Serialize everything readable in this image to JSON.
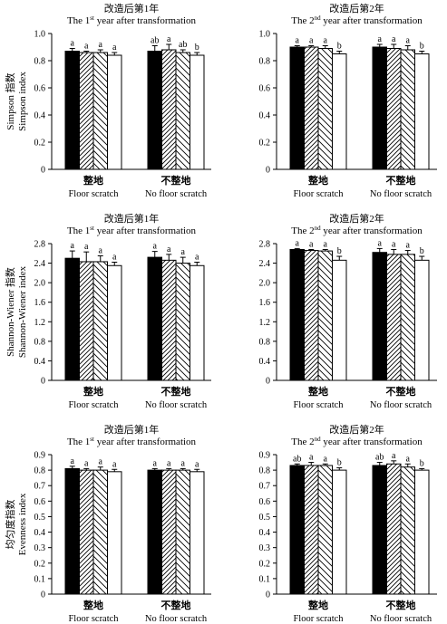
{
  "figure": {
    "category_labels_cn": [
      "整地",
      "不整地"
    ],
    "category_labels_en": [
      "Floor scratch",
      "No floor scratch"
    ],
    "panel_titles": [
      {
        "cn": "改造后第1年",
        "en_pre": "The 1",
        "en_sup": "st",
        "en_post": " year after transformation"
      },
      {
        "cn": "改造后第2年",
        "en_pre": "The 2",
        "en_sup": "nd",
        "en_post": " year after transformation"
      }
    ]
  },
  "chart_data": [
    {
      "type": "bar",
      "row": 0,
      "col": 0,
      "title": "改造后第1年 The 1st year after transformation",
      "ylabel_cn": "Simpson 指数",
      "ylabel_en": "Simpson index",
      "ylim": [
        0,
        1.0
      ],
      "yticks": [
        "0",
        "0.2",
        "0.4",
        "0.6",
        "0.8",
        "1.0"
      ],
      "yticks_values": [
        0,
        0.2,
        0.4,
        0.6,
        0.8,
        1.0
      ],
      "categories": [
        "整地 Floor scratch",
        "不整地 No floor scratch"
      ],
      "series": [
        {
          "fill": "black",
          "values": [
            0.87,
            0.87
          ],
          "errors": [
            0.02,
            0.04
          ],
          "letters": [
            "a",
            "ab"
          ]
        },
        {
          "fill": "hatch-fwd",
          "values": [
            0.86,
            0.88
          ],
          "errors": [
            0.01,
            0.04
          ],
          "letters": [
            "a",
            "a"
          ]
        },
        {
          "fill": "hatch-back",
          "values": [
            0.86,
            0.86
          ],
          "errors": [
            0.02,
            0.02
          ],
          "letters": [
            "a",
            "ab"
          ]
        },
        {
          "fill": "white",
          "values": [
            0.84,
            0.84
          ],
          "errors": [
            0.02,
            0.02
          ],
          "letters": [
            "a",
            "b"
          ]
        }
      ]
    },
    {
      "type": "bar",
      "row": 0,
      "col": 1,
      "title": "改造后第2年 The 2nd year after transformation",
      "ylim": [
        0,
        1.0
      ],
      "yticks": [
        "0",
        "0.2",
        "0.4",
        "0.6",
        "0.8",
        "1.0"
      ],
      "yticks_values": [
        0,
        0.2,
        0.4,
        0.6,
        0.8,
        1.0
      ],
      "categories": [
        "整地 Floor scratch",
        "不整地 No floor scratch"
      ],
      "series": [
        {
          "fill": "black",
          "values": [
            0.9,
            0.9
          ],
          "errors": [
            0.01,
            0.02
          ],
          "letters": [
            "a",
            "a"
          ]
        },
        {
          "fill": "hatch-fwd",
          "values": [
            0.9,
            0.89
          ],
          "errors": [
            0.01,
            0.03
          ],
          "letters": [
            "a",
            "a"
          ]
        },
        {
          "fill": "hatch-back",
          "values": [
            0.89,
            0.88
          ],
          "errors": [
            0.02,
            0.03
          ],
          "letters": [
            "a",
            "a"
          ]
        },
        {
          "fill": "white",
          "values": [
            0.85,
            0.85
          ],
          "errors": [
            0.02,
            0.02
          ],
          "letters": [
            "b",
            "b"
          ]
        }
      ]
    },
    {
      "type": "bar",
      "row": 1,
      "col": 0,
      "title": "改造后第1年 The 1st year after transformation",
      "ylabel_cn": "Shannon-Wiener 指数",
      "ylabel_en": "Shannon-Wiener index",
      "ylim": [
        0,
        2.8
      ],
      "yticks": [
        "0",
        "0.4",
        "0.8",
        "1.2",
        "1.6",
        "2.0",
        "2.4",
        "2.8"
      ],
      "yticks_values": [
        0,
        0.4,
        0.8,
        1.2,
        1.6,
        2.0,
        2.4,
        2.8
      ],
      "categories": [
        "整地 Floor scratch",
        "不整地 No floor scratch"
      ],
      "series": [
        {
          "fill": "black",
          "values": [
            2.5,
            2.52
          ],
          "errors": [
            0.15,
            0.12
          ],
          "letters": [
            "a",
            "a"
          ]
        },
        {
          "fill": "hatch-fwd",
          "values": [
            2.43,
            2.46
          ],
          "errors": [
            0.2,
            0.12
          ],
          "letters": [
            "a",
            "a"
          ]
        },
        {
          "fill": "hatch-back",
          "values": [
            2.43,
            2.4
          ],
          "errors": [
            0.12,
            0.12
          ],
          "letters": [
            "a",
            "a"
          ]
        },
        {
          "fill": "white",
          "values": [
            2.35,
            2.35
          ],
          "errors": [
            0.07,
            0.07
          ],
          "letters": [
            "a",
            "a"
          ]
        }
      ]
    },
    {
      "type": "bar",
      "row": 1,
      "col": 1,
      "title": "改造后第2年 The 2nd year after transformation",
      "ylim": [
        0,
        2.8
      ],
      "yticks": [
        "0",
        "0.4",
        "0.8",
        "1.2",
        "1.6",
        "2.0",
        "2.4",
        "2.8"
      ],
      "yticks_values": [
        0,
        0.4,
        0.8,
        1.2,
        1.6,
        2.0,
        2.4,
        2.8
      ],
      "categories": [
        "整地 Floor scratch",
        "不整地 No floor scratch"
      ],
      "series": [
        {
          "fill": "black",
          "values": [
            2.68,
            2.62
          ],
          "errors": [
            0.02,
            0.08
          ],
          "letters": [
            "a",
            "a"
          ]
        },
        {
          "fill": "hatch-fwd",
          "values": [
            2.66,
            2.58
          ],
          "errors": [
            0.02,
            0.1
          ],
          "letters": [
            "a",
            "a"
          ]
        },
        {
          "fill": "hatch-back",
          "values": [
            2.65,
            2.58
          ],
          "errors": [
            0.03,
            0.08
          ],
          "letters": [
            "a",
            "a"
          ]
        },
        {
          "fill": "white",
          "values": [
            2.46,
            2.46
          ],
          "errors": [
            0.08,
            0.08
          ],
          "letters": [
            "b",
            "b"
          ]
        }
      ]
    },
    {
      "type": "bar",
      "row": 2,
      "col": 0,
      "title": "改造后第1年 The 1st year after transformation",
      "ylabel_cn": "均匀度指数",
      "ylabel_en": "Evenness index",
      "ylim": [
        0,
        0.9
      ],
      "yticks": [
        "0",
        "0.1",
        "0.2",
        "0.3",
        "0.4",
        "0.5",
        "0.6",
        "0.7",
        "0.8",
        "0.9"
      ],
      "yticks_values": [
        0,
        0.1,
        0.2,
        0.3,
        0.4,
        0.5,
        0.6,
        0.7,
        0.8,
        0.9
      ],
      "categories": [
        "整地 Floor scratch",
        "不整地 No floor scratch"
      ],
      "series": [
        {
          "fill": "black",
          "values": [
            0.81,
            0.8
          ],
          "errors": [
            0.015,
            0.01
          ],
          "letters": [
            "a",
            "a"
          ]
        },
        {
          "fill": "hatch-fwd",
          "values": [
            0.8,
            0.8
          ],
          "errors": [
            0.01,
            0.01
          ],
          "letters": [
            "a",
            "a"
          ]
        },
        {
          "fill": "hatch-back",
          "values": [
            0.8,
            0.8
          ],
          "errors": [
            0.02,
            0.01
          ],
          "letters": [
            "a",
            "a"
          ]
        },
        {
          "fill": "white",
          "values": [
            0.79,
            0.79
          ],
          "errors": [
            0.015,
            0.015
          ],
          "letters": [
            "a",
            "a"
          ]
        }
      ]
    },
    {
      "type": "bar",
      "row": 2,
      "col": 1,
      "title": "改造后第2年 The 2nd year after transformation",
      "ylim": [
        0,
        0.9
      ],
      "yticks": [
        "0",
        "0.1",
        "0.2",
        "0.3",
        "0.4",
        "0.5",
        "0.6",
        "0.7",
        "0.8",
        "0.9"
      ],
      "yticks_values": [
        0,
        0.1,
        0.2,
        0.3,
        0.4,
        0.5,
        0.6,
        0.7,
        0.8,
        0.9
      ],
      "categories": [
        "整地 Floor scratch",
        "不整地 No floor scratch"
      ],
      "series": [
        {
          "fill": "black",
          "values": [
            0.83,
            0.83
          ],
          "errors": [
            0.01,
            0.02
          ],
          "letters": [
            "ab",
            "ab"
          ]
        },
        {
          "fill": "hatch-fwd",
          "values": [
            0.83,
            0.84
          ],
          "errors": [
            0.02,
            0.02
          ],
          "letters": [
            "a",
            "a"
          ]
        },
        {
          "fill": "hatch-back",
          "values": [
            0.83,
            0.82
          ],
          "errors": [
            0.01,
            0.02
          ],
          "letters": [
            "a",
            "a"
          ]
        },
        {
          "fill": "white",
          "values": [
            0.8,
            0.8
          ],
          "errors": [
            0.015,
            0.01
          ],
          "letters": [
            "b",
            "b"
          ]
        }
      ]
    }
  ]
}
